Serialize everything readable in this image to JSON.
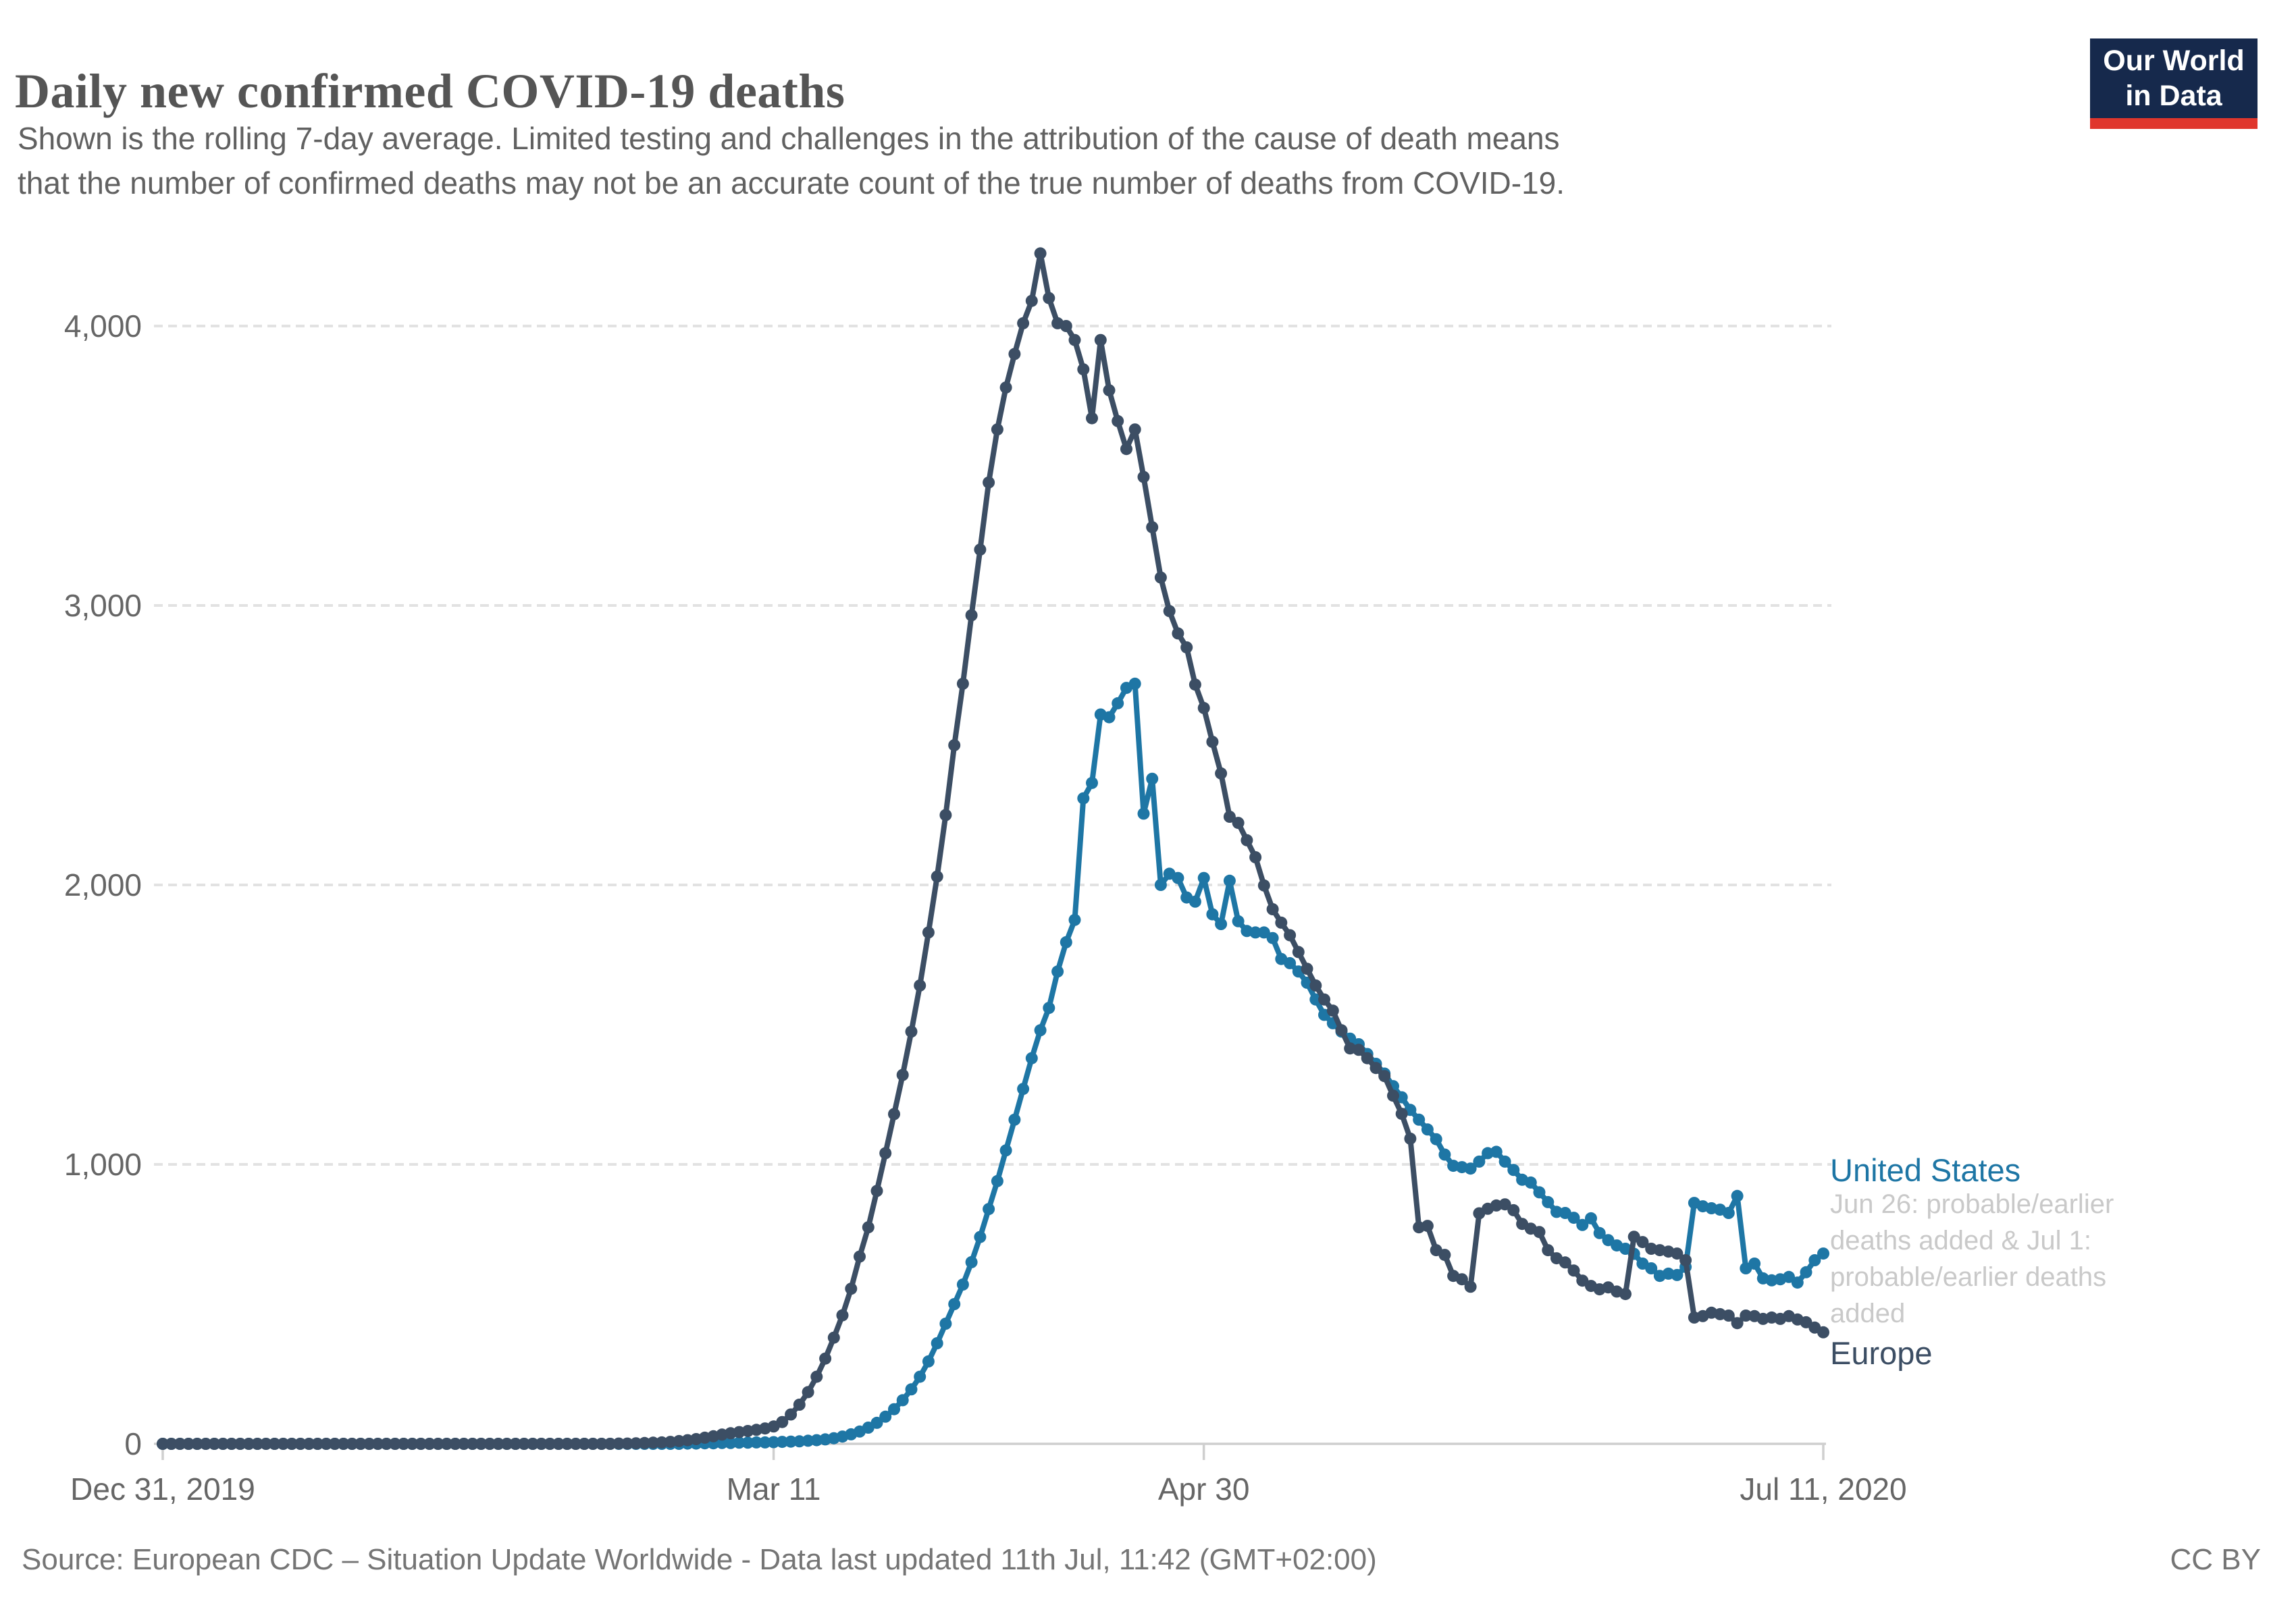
{
  "header": {
    "title": "Daily new confirmed COVID-19 deaths",
    "subtitle": "Shown is the rolling 7-day average. Limited testing and challenges in the attribution of the cause of death means\nthat the number of confirmed deaths may not be an accurate count of the true number of deaths from COVID-19."
  },
  "logo": {
    "line1": "Our World",
    "line2": "in Data",
    "bg_color": "#16294c",
    "bar_color": "#e0362c"
  },
  "footer": {
    "source": "Source: European CDC – Situation Update Worldwide - Data last updated 11th Jul, 11:42 (GMT+02:00)",
    "license": "CC BY"
  },
  "chart_data": {
    "type": "line",
    "title": "Daily new confirmed COVID-19 deaths",
    "ylabel": "",
    "xlabel": "",
    "ylim": [
      0,
      4300
    ],
    "grid": "horizontal dashed",
    "legend_position": "right of last points",
    "x_unit": "days since Dec 31, 2019",
    "y_ticks": [
      {
        "value": 0,
        "label": "0"
      },
      {
        "value": 1000,
        "label": "1,000"
      },
      {
        "value": 2000,
        "label": "2,000"
      },
      {
        "value": 3000,
        "label": "3,000"
      },
      {
        "value": 4000,
        "label": "4,000"
      }
    ],
    "x_ticks": [
      {
        "day": 0,
        "label": "Dec 31, 2019"
      },
      {
        "day": 71,
        "label": "Mar 11"
      },
      {
        "day": 121,
        "label": "Apr 30"
      },
      {
        "day": 193,
        "label": "Jul 11, 2020"
      }
    ],
    "series": [
      {
        "name": "United States",
        "color": "#1e76a5",
        "annotation": "Jun 26: probable/earlier\ndeaths added & Jul 1:\nprobable/earlier deaths\nadded",
        "values": [
          0,
          0,
          0,
          0,
          0,
          0,
          0,
          0,
          0,
          0,
          0,
          0,
          0,
          0,
          0,
          0,
          0,
          0,
          0,
          0,
          0,
          0,
          0,
          0,
          0,
          0,
          0,
          0,
          0,
          0,
          0,
          0,
          0,
          0,
          0,
          0,
          0,
          0,
          0,
          0,
          0,
          0,
          0,
          0,
          0,
          0,
          0,
          0,
          0,
          0,
          0,
          0,
          0,
          0,
          0,
          0,
          0,
          0,
          0,
          0,
          0,
          1,
          1,
          2,
          2,
          3,
          3,
          4,
          4,
          5,
          5,
          6,
          7,
          8,
          9,
          11,
          13,
          16,
          20,
          26,
          34,
          44,
          58,
          75,
          97,
          124,
          156,
          195,
          240,
          295,
          360,
          430,
          500,
          570,
          650,
          740,
          840,
          940,
          1050,
          1160,
          1270,
          1380,
          1480,
          1560,
          1690,
          1795,
          1875,
          2310,
          2365,
          2610,
          2600,
          2650,
          2705,
          2720,
          2255,
          2380,
          2000,
          2040,
          2025,
          1955,
          1940,
          2025,
          1895,
          1860,
          2015,
          1870,
          1835,
          1830,
          1830,
          1810,
          1735,
          1720,
          1690,
          1650,
          1590,
          1535,
          1505,
          1475,
          1450,
          1430,
          1395,
          1360,
          1325,
          1280,
          1240,
          1195,
          1160,
          1125,
          1090,
          1035,
          995,
          990,
          985,
          1010,
          1040,
          1045,
          1010,
          980,
          945,
          935,
          900,
          865,
          830,
          826,
          809,
          783,
          807,
          754,
          729,
          710,
          698,
          680,
          645,
          628,
          601,
          609,
          604,
          633,
          862,
          850,
          843,
          838,
          826,
          887,
          628,
          645,
          592,
          585,
          589,
          597,
          577,
          614,
          657,
          681
        ]
      },
      {
        "name": "Europe",
        "color": "#3c4e64",
        "annotation": "",
        "values": [
          0,
          0,
          0,
          0,
          0,
          0,
          0,
          0,
          0,
          0,
          0,
          0,
          0,
          0,
          0,
          0,
          0,
          0,
          0,
          0,
          0,
          0,
          0,
          0,
          0,
          0,
          0,
          0,
          0,
          0,
          0,
          0,
          0,
          0,
          0,
          0,
          0,
          0,
          0,
          0,
          0,
          0,
          0,
          0,
          0,
          0,
          0,
          0,
          0,
          0,
          0,
          0,
          0,
          1,
          1,
          2,
          3,
          4,
          5,
          7,
          10,
          13,
          17,
          22,
          27,
          33,
          38,
          42,
          46,
          50,
          55,
          62,
          78,
          105,
          140,
          185,
          240,
          305,
          380,
          460,
          555,
          670,
          775,
          905,
          1040,
          1180,
          1320,
          1475,
          1640,
          1830,
          2030,
          2250,
          2500,
          2720,
          2965,
          3200,
          3440,
          3630,
          3780,
          3900,
          4010,
          4090,
          4260,
          4100,
          4010,
          4000,
          3950,
          3845,
          3670,
          3950,
          3770,
          3660,
          3560,
          3630,
          3460,
          3280,
          3100,
          2980,
          2900,
          2850,
          2717,
          2633,
          2512,
          2399,
          2244,
          2222,
          2160,
          2099,
          1998,
          1913,
          1865,
          1820,
          1760,
          1700,
          1640,
          1590,
          1550,
          1480,
          1415,
          1410,
          1380,
          1345,
          1316,
          1246,
          1181,
          1092,
          775,
          780,
          693,
          676,
          601,
          589,
          562,
          825,
          841,
          853,
          857,
          836,
          787,
          770,
          758,
          693,
          664,
          649,
          620,
          584,
          565,
          553,
          560,
          545,
          536,
          741,
          722,
          698,
          693,
          688,
          681,
          657,
          452,
          457,
          469,
          464,
          459,
          432,
          459,
          457,
          447,
          452,
          447,
          457,
          445,
          435,
          416,
          399
        ]
      }
    ]
  }
}
